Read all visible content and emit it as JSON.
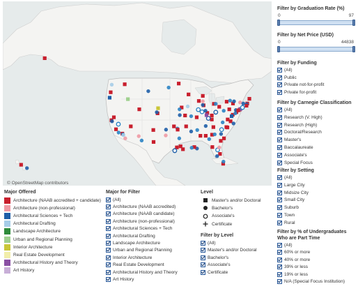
{
  "map": {
    "attribution": "© OpenStreetMap contributors",
    "land_color": "#f4f4f2",
    "water_color": "#e6ebeb",
    "marks": [
      {
        "c": "#c81f2d",
        "s": "sq",
        "lon": -122.4,
        "lat": 37.8
      },
      {
        "c": "#1f5fa8",
        "s": "ci",
        "lon": -122.2,
        "lat": 37.5
      },
      {
        "c": "#c81f2d",
        "s": "sq",
        "lon": -118.3,
        "lat": 34.1
      },
      {
        "c": "#2c84c4",
        "s": "ci",
        "lon": -118.1,
        "lat": 33.9
      },
      {
        "c": "#f09aa4",
        "s": "ci",
        "lon": -117.2,
        "lat": 32.8
      },
      {
        "c": "#c81f2d",
        "s": "sq",
        "lon": -121.5,
        "lat": 38.6
      },
      {
        "c": "#2c84c4",
        "s": "oc",
        "lon": -119.8,
        "lat": 36.7
      },
      {
        "c": "#c81f2d",
        "s": "sq",
        "lon": -122.7,
        "lat": 45.5
      },
      {
        "c": "#a6cde8",
        "s": "ci",
        "lon": -122.3,
        "lat": 47.6
      },
      {
        "c": "#1f5fa8",
        "s": "sq",
        "lon": -123.1,
        "lat": 44.0
      },
      {
        "c": "#c81f2d",
        "s": "sq",
        "lon": -111.9,
        "lat": 40.8
      },
      {
        "c": "#f09aa4",
        "s": "ci",
        "lon": -112.1,
        "lat": 33.4
      },
      {
        "c": "#2c84c4",
        "s": "ci",
        "lon": -111.0,
        "lat": 32.2
      },
      {
        "c": "#c81f2d",
        "s": "sq",
        "lon": -115.1,
        "lat": 36.1
      },
      {
        "c": "#c81f2d",
        "s": "sq",
        "lon": -105.0,
        "lat": 39.7
      },
      {
        "c": "#1f5fa8",
        "s": "ci",
        "lon": -105.3,
        "lat": 40.0
      },
      {
        "c": "#c81f2d",
        "s": "sq",
        "lon": -106.6,
        "lat": 35.1
      },
      {
        "c": "#9fd08f",
        "s": "sq",
        "lon": -116.2,
        "lat": 43.6
      },
      {
        "c": "#c81f2d",
        "s": "sq",
        "lon": -97.7,
        "lat": 30.3
      },
      {
        "c": "#2c84c4",
        "s": "ci",
        "lon": -96.8,
        "lat": 32.8
      },
      {
        "c": "#c81f2d",
        "s": "sq",
        "lon": -95.4,
        "lat": 29.8
      },
      {
        "c": "#1f5fa8",
        "s": "oc",
        "lon": -98.5,
        "lat": 29.4
      },
      {
        "c": "#c81f2d",
        "s": "sq",
        "lon": -96.3,
        "lat": 30.6
      },
      {
        "c": "#f09aa4",
        "s": "ci",
        "lon": -101.9,
        "lat": 33.6
      },
      {
        "c": "#2c84c4",
        "s": "ci",
        "lon": -97.5,
        "lat": 35.5
      },
      {
        "c": "#c81f2d",
        "s": "sq",
        "lon": -97.4,
        "lat": 35.2
      },
      {
        "c": "#c81f2d",
        "s": "sq",
        "lon": -95.9,
        "lat": 41.3
      },
      {
        "c": "#2c84c4",
        "s": "ci",
        "lon": -96.7,
        "lat": 40.8
      },
      {
        "c": "#c81f2d",
        "s": "sq",
        "lon": -94.6,
        "lat": 39.1
      },
      {
        "c": "#1f5fa8",
        "s": "ci",
        "lon": -96.6,
        "lat": 39.2
      },
      {
        "c": "#c81f2d",
        "s": "sq",
        "lon": -93.3,
        "lat": 44.9
      },
      {
        "c": "#a6cde8",
        "s": "ci",
        "lon": -93.6,
        "lat": 41.6
      },
      {
        "c": "#c81f2d",
        "s": "sq",
        "lon": -90.2,
        "lat": 38.6
      },
      {
        "c": "#2c84c4",
        "s": "ci",
        "lon": -92.3,
        "lat": 38.9
      },
      {
        "c": "#c81f2d",
        "s": "sq",
        "lon": -87.6,
        "lat": 41.9
      },
      {
        "c": "#1f5fa8",
        "s": "ci",
        "lon": -87.9,
        "lat": 42.0
      },
      {
        "c": "#2c84c4",
        "s": "oc",
        "lon": -88.2,
        "lat": 40.1
      },
      {
        "c": "#c81f2d",
        "s": "sq",
        "lon": -89.4,
        "lat": 43.1
      },
      {
        "c": "#f09aa4",
        "s": "ci",
        "lon": -87.9,
        "lat": 43.0
      },
      {
        "c": "#c81f2d",
        "s": "sq",
        "lon": -86.2,
        "lat": 39.8
      },
      {
        "c": "#1f5fa8",
        "s": "ci",
        "lon": -86.9,
        "lat": 40.4
      },
      {
        "c": "#c81f2d",
        "s": "sq",
        "lon": -83.7,
        "lat": 42.3
      },
      {
        "c": "#2c84c4",
        "s": "ci",
        "lon": -83.0,
        "lat": 42.3
      },
      {
        "c": "#c81f2d",
        "s": "sq",
        "lon": -84.5,
        "lat": 39.1
      },
      {
        "c": "#1f5fa8",
        "s": "oc",
        "lon": -83.0,
        "lat": 40.0
      },
      {
        "c": "#c81f2d",
        "s": "sq",
        "lon": -81.7,
        "lat": 41.5
      },
      {
        "c": "#2c84c4",
        "s": "ci",
        "lon": -80.0,
        "lat": 40.4
      },
      {
        "c": "#c81f2d",
        "s": "sq",
        "lon": -77.9,
        "lat": 40.8
      },
      {
        "c": "#c81f2d",
        "s": "sq",
        "lon": -75.2,
        "lat": 40.0
      },
      {
        "c": "#1f5fa8",
        "s": "ci",
        "lon": -75.4,
        "lat": 40.6
      },
      {
        "c": "#c81f2d",
        "s": "sq",
        "lon": -74.0,
        "lat": 40.7
      },
      {
        "c": "#2c84c4",
        "s": "ci",
        "lon": -73.9,
        "lat": 40.8
      },
      {
        "c": "#8a4fa3",
        "s": "sq",
        "lon": -73.7,
        "lat": 40.9
      },
      {
        "c": "#c81f2d",
        "s": "sq",
        "lon": -71.1,
        "lat": 42.4
      },
      {
        "c": "#1f5fa8",
        "s": "ci",
        "lon": -71.3,
        "lat": 42.2
      },
      {
        "c": "#2c84c4",
        "s": "oc",
        "lon": -72.9,
        "lat": 41.3
      },
      {
        "c": "#c81f2d",
        "s": "sq",
        "lon": -71.4,
        "lat": 41.8
      },
      {
        "c": "#f09aa4",
        "s": "ci",
        "lon": -73.8,
        "lat": 42.7
      },
      {
        "c": "#c81f2d",
        "s": "sq",
        "lon": -76.5,
        "lat": 42.4
      },
      {
        "c": "#1f5fa8",
        "s": "ci",
        "lon": -76.1,
        "lat": 43.0
      },
      {
        "c": "#c81f2d",
        "s": "sq",
        "lon": -78.9,
        "lat": 42.9
      },
      {
        "c": "#2c84c4",
        "s": "ci",
        "lon": -77.6,
        "lat": 43.2
      },
      {
        "c": "#c81f2d",
        "s": "sq",
        "lon": -76.6,
        "lat": 39.3
      },
      {
        "c": "#1f5fa8",
        "s": "sq",
        "lon": -77.0,
        "lat": 38.9
      },
      {
        "c": "#c81f2d",
        "s": "sq",
        "lon": -78.5,
        "lat": 38.0
      },
      {
        "c": "#2c84c4",
        "s": "ci",
        "lon": -80.4,
        "lat": 37.2
      },
      {
        "c": "#c81f2d",
        "s": "sq",
        "lon": -77.4,
        "lat": 37.5
      },
      {
        "c": "#1f5fa8",
        "s": "ci",
        "lon": -76.3,
        "lat": 36.9
      },
      {
        "c": "#c81f2d",
        "s": "sq",
        "lon": -78.6,
        "lat": 35.8
      },
      {
        "c": "#2c84c4",
        "s": "oc",
        "lon": -80.8,
        "lat": 35.2
      },
      {
        "c": "#c81f2d",
        "s": "sq",
        "lon": -79.9,
        "lat": 32.8
      },
      {
        "c": "#1f5fa8",
        "s": "ci",
        "lon": -81.0,
        "lat": 34.0
      },
      {
        "c": "#c81f2d",
        "s": "sq",
        "lon": -84.4,
        "lat": 33.8
      },
      {
        "c": "#2c84c4",
        "s": "ci",
        "lon": -83.4,
        "lat": 33.9
      },
      {
        "c": "#c81f2d",
        "s": "sq",
        "lon": -81.1,
        "lat": 32.1
      },
      {
        "c": "#1f5fa8",
        "s": "ci",
        "lon": -86.8,
        "lat": 36.2
      },
      {
        "c": "#c81f2d",
        "s": "sq",
        "lon": -83.9,
        "lat": 35.9
      },
      {
        "c": "#2c84c4",
        "s": "ci",
        "lon": -90.0,
        "lat": 35.1
      },
      {
        "c": "#c81f2d",
        "s": "sq",
        "lon": -84.5,
        "lat": 38.0
      },
      {
        "c": "#1f5fa8",
        "s": "oc",
        "lon": -85.8,
        "lat": 38.3
      },
      {
        "c": "#c81f2d",
        "s": "sq",
        "lon": -86.8,
        "lat": 33.5
      },
      {
        "c": "#2c84c4",
        "s": "ci",
        "lon": -85.5,
        "lat": 32.6
      },
      {
        "c": "#c81f2d",
        "s": "sq",
        "lon": -88.8,
        "lat": 33.5
      },
      {
        "c": "#1f5fa8",
        "s": "ci",
        "lon": -90.1,
        "lat": 30.0
      },
      {
        "c": "#c81f2d",
        "s": "sq",
        "lon": -91.1,
        "lat": 30.4
      },
      {
        "c": "#2c84c4",
        "s": "ci",
        "lon": -92.1,
        "lat": 30.2
      },
      {
        "c": "#c81f2d",
        "s": "sq",
        "lon": -94.2,
        "lat": 36.1
      },
      {
        "c": "#1f5fa8",
        "s": "ci",
        "lon": -92.3,
        "lat": 34.7
      },
      {
        "c": "#c81f2d",
        "s": "sq",
        "lon": -84.3,
        "lat": 30.4
      },
      {
        "c": "#2c84c4",
        "s": "oc",
        "lon": -82.3,
        "lat": 29.6
      },
      {
        "c": "#c81f2d",
        "s": "sq",
        "lon": -81.4,
        "lat": 28.5
      },
      {
        "c": "#1f5fa8",
        "s": "ci",
        "lon": -82.5,
        "lat": 27.9
      },
      {
        "c": "#c81f2d",
        "s": "sq",
        "lon": -80.2,
        "lat": 25.8
      },
      {
        "c": "#2c84c4",
        "s": "ci",
        "lon": -80.1,
        "lat": 26.4
      },
      {
        "c": "#f09aa4",
        "s": "ci",
        "lon": -81.7,
        "lat": 30.3
      },
      {
        "c": "#c81f2d",
        "s": "sq",
        "lon": -157.9,
        "lat": 21.3
      },
      {
        "c": "#1f5fa8",
        "s": "ci",
        "lon": -155.1,
        "lat": 19.7
      },
      {
        "c": "#c81f2d",
        "s": "sq",
        "lon": -66.1,
        "lat": 18.4
      },
      {
        "c": "#c81f2d",
        "s": "sq",
        "lon": -149.9,
        "lat": 61.2
      },
      {
        "c": "#c9c637",
        "s": "sq",
        "lon": -104.8,
        "lat": 41.1
      },
      {
        "c": "#2c84c4",
        "s": "ci",
        "lon": -100.8,
        "lat": 46.8
      },
      {
        "c": "#c81f2d",
        "s": "sq",
        "lon": -97.0,
        "lat": 47.9
      },
      {
        "c": "#1f5fa8",
        "s": "ci",
        "lon": -108.5,
        "lat": 45.8
      },
      {
        "c": "#c81f2d",
        "s": "sq",
        "lon": -117.4,
        "lat": 47.7
      },
      {
        "c": "#2c84c4",
        "s": "ci",
        "lon": -119.7,
        "lat": 34.4
      },
      {
        "c": "#c81f2d",
        "s": "sq",
        "lon": -120.7,
        "lat": 35.3
      },
      {
        "c": "#a6cde8",
        "s": "ci",
        "lon": -117.9,
        "lat": 33.7
      },
      {
        "c": "#c81f2d",
        "s": "sq",
        "lon": -70.3,
        "lat": 43.7
      },
      {
        "c": "#1f5fa8",
        "s": "ci",
        "lon": -72.6,
        "lat": 42.4
      },
      {
        "c": "#c81f2d",
        "s": "sq",
        "lon": -74.5,
        "lat": 40.5
      },
      {
        "c": "#2c84c4",
        "s": "ci",
        "lon": -75.6,
        "lat": 39.7
      },
      {
        "c": "#c81f2d",
        "s": "sq",
        "lon": -79.0,
        "lat": 35.9
      },
      {
        "c": "#8a4fa3",
        "s": "sq",
        "lon": -86.5,
        "lat": 39.2
      },
      {
        "c": "#c81f2d",
        "s": "sq",
        "lon": -87.9,
        "lat": 44.5
      },
      {
        "c": "#2c84c4",
        "s": "oc",
        "lon": -89.6,
        "lat": 40.7
      },
      {
        "c": "#c81f2d",
        "s": "sq",
        "lon": -98.8,
        "lat": 36.1
      },
      {
        "c": "#1f5fa8",
        "s": "ci",
        "lon": -101.8,
        "lat": 35.2
      },
      {
        "c": "#c81f2d",
        "s": "sq",
        "lon": -106.5,
        "lat": 31.8
      }
    ]
  },
  "major_legend": {
    "title": "Major Offered",
    "items": [
      {
        "label": "Architecture (NAAB accredited + candidate)",
        "color": "#c81f2d"
      },
      {
        "label": "Architecture (non-professional)",
        "color": "#f09aa4"
      },
      {
        "label": "Architectural Sciences + Tech",
        "color": "#1f5fa8"
      },
      {
        "label": "Architectural Drafting",
        "color": "#a6cde8"
      },
      {
        "label": "Landscape Architecture",
        "color": "#2e8b3a"
      },
      {
        "label": "Urban and Regional Planning",
        "color": "#9fd08f"
      },
      {
        "label": "Interior Architecture",
        "color": "#c9c637"
      },
      {
        "label": "Real Estate Development",
        "color": "#f2eeaa"
      },
      {
        "label": "Architectural History and Theory",
        "color": "#8a4fa3"
      },
      {
        "label": "Art History",
        "color": "#c8aed7"
      }
    ]
  },
  "major_filter": {
    "title": "Major for Filter",
    "items": [
      "(All)",
      "Architecture (NAAB accredited)",
      "Architecture (NAAB candidate)",
      "Architecture (non-professional)",
      "Architectural Sciences + Tech",
      "Architectural Drafting",
      "Landscape Architecture",
      "Urban and Regional Planning",
      "Interior Architecture",
      "Real Estate Development",
      "Architectural History and Theory",
      "Art History"
    ]
  },
  "level_legend": {
    "title": "Level",
    "items": [
      {
        "label": "Master's and/or Doctoral",
        "shape": "square-icon"
      },
      {
        "label": "Bachelor's",
        "shape": "filled-circle-icon"
      },
      {
        "label": "Associate's",
        "shape": "open-circle-icon"
      },
      {
        "label": "Certificate",
        "shape": "plus-icon"
      }
    ]
  },
  "level_filter": {
    "title": "Filter by Level",
    "items": [
      "(All)",
      "Master's and/or Doctoral",
      "Bachelor's",
      "Associate's",
      "Certificate"
    ]
  },
  "graduation_filter": {
    "title": "Filter by Graduation Rate (%)",
    "min": "0",
    "max": "97"
  },
  "price_filter": {
    "title": "Filter by Net Price (USD)",
    "min": "0",
    "max": "44838"
  },
  "funding_filter": {
    "title": "Filter by Funding",
    "items": [
      "(All)",
      "Public",
      "Private not-for-profit",
      "Private for-profit"
    ]
  },
  "carnegie_filter": {
    "title": "Filter by Carnegie Classification",
    "items": [
      "(All)",
      "Research (V. High)",
      "Research (High)",
      "Doctoral/Research",
      "Master's",
      "Baccalaureate",
      "Associate's",
      "Special Focus"
    ]
  },
  "setting_filter": {
    "title": "Filter by Setting",
    "items": [
      "(All)",
      "Large City",
      "Midsize City",
      "Small City",
      "Suburb",
      "Town",
      "Rural"
    ]
  },
  "parttime_filter": {
    "title": "Filter by % of Undergraduates Who are Part Time",
    "items": [
      "(All)",
      "60% or more",
      "40% or more",
      "39% or less",
      "19% or less",
      "N/A (Special Focus Institution)"
    ]
  }
}
